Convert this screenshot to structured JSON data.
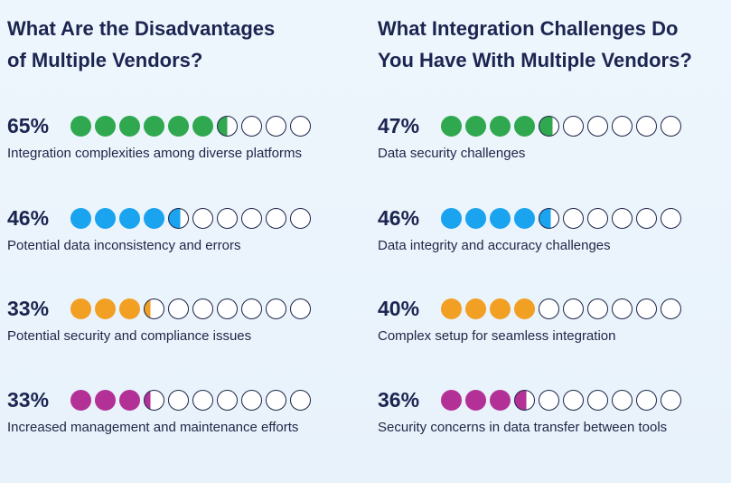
{
  "colors": {
    "green": "#2fa84f",
    "blue": "#1aa3ef",
    "orange": "#f2a024",
    "magenta": "#b33197",
    "outline": "#1e2548"
  },
  "left": {
    "heading": [
      "What Are the Disadvantages",
      "of Multiple Vendors?"
    ],
    "items": [
      {
        "pct": "65%",
        "label": "Integration complexities among diverse platforms",
        "value": 65,
        "color": "#2fa84f"
      },
      {
        "pct": "46%",
        "label": "Potential data inconsistency and errors",
        "value": 46,
        "color": "#1aa3ef"
      },
      {
        "pct": "33%",
        "label": "Potential security and compliance issues",
        "value": 33,
        "color": "#f2a024"
      },
      {
        "pct": "33%",
        "label": "Increased management and maintenance efforts",
        "value": 33,
        "color": "#b33197"
      }
    ]
  },
  "right": {
    "heading": [
      "What Integration Challenges Do",
      "You Have With Multiple Vendors?"
    ],
    "items": [
      {
        "pct": "47%",
        "label": "Data security challenges",
        "value": 47,
        "color": "#2fa84f"
      },
      {
        "pct": "46%",
        "label": "Data integrity and accuracy challenges",
        "value": 46,
        "color": "#1aa3ef"
      },
      {
        "pct": "40%",
        "label": "Complex setup for seamless integration",
        "value": 40,
        "color": "#f2a024"
      },
      {
        "pct": "36%",
        "label": "Security concerns in data transfer between tools",
        "value": 36,
        "color": "#b33197"
      }
    ]
  },
  "chart_data": [
    {
      "type": "bar",
      "title": "What Are the Disadvantages of Multiple Vendors?",
      "categories": [
        "Integration complexities among diverse platforms",
        "Potential data inconsistency and errors",
        "Potential security and compliance issues",
        "Increased management and maintenance efforts"
      ],
      "values": [
        65,
        46,
        33,
        33
      ],
      "ylim": [
        0,
        100
      ]
    },
    {
      "type": "bar",
      "title": "What Integration Challenges Do You Have With Multiple Vendors?",
      "categories": [
        "Data security challenges",
        "Data integrity and accuracy challenges",
        "Complex setup for seamless integration",
        "Security concerns in data transfer between tools"
      ],
      "values": [
        47,
        46,
        40,
        36
      ],
      "ylim": [
        0,
        100
      ]
    }
  ]
}
